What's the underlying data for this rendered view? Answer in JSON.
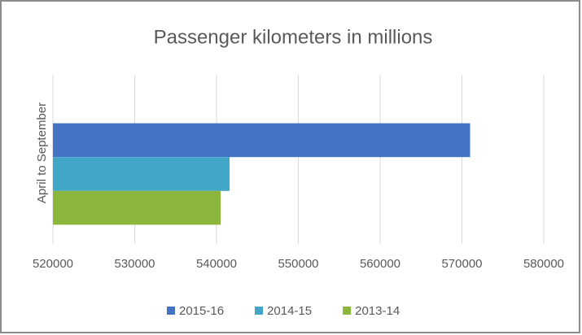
{
  "chart_data": {
    "type": "hbar",
    "title": "Passenger kilometers in millions",
    "categories": [
      "April to September"
    ],
    "series": [
      {
        "name": "2015-16",
        "color": "#4472c4",
        "values": [
          571000
        ]
      },
      {
        "name": "2014-15",
        "color": "#41a6c8",
        "values": [
          541600
        ]
      },
      {
        "name": "2013-14",
        "color": "#8db63c",
        "values": [
          540500
        ]
      }
    ],
    "xlim": [
      520000,
      580000
    ],
    "xticks": [
      520000,
      530000,
      540000,
      550000,
      560000,
      570000,
      580000
    ],
    "grid": true,
    "legend": "bottom"
  }
}
